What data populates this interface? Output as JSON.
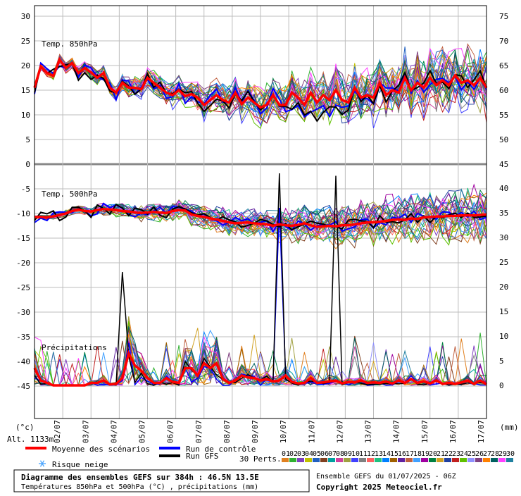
{
  "chart_data": {
    "type": "line",
    "x_ticks": [
      "02/07",
      "03/07",
      "04/07",
      "05/07",
      "06/07",
      "07/07",
      "08/07",
      "09/07",
      "10/07",
      "11/07",
      "12/07",
      "13/07",
      "14/07",
      "15/07",
      "16/07",
      "17/07"
    ],
    "left_axis": {
      "ticks": [
        30,
        25,
        20,
        15,
        10,
        5,
        0,
        -5,
        -10,
        -15,
        -20,
        -25,
        -30,
        -35,
        -40,
        -45
      ],
      "unit": "(°c)"
    },
    "right_axis_upper": {
      "ticks": [
        75,
        70,
        65,
        60,
        55,
        50,
        45
      ]
    },
    "right_axis_lower": {
      "ticks": [
        40,
        35,
        30,
        25,
        20,
        15,
        10,
        5,
        0
      ]
    },
    "right_unit": "(mm)",
    "panels": {
      "t850": "Temp. 850hPa",
      "t500": "Temp. 500hPa",
      "precip": "Précipitations"
    },
    "altitude": "Alt. 1133m",
    "t850_mean": [
      15.5,
      19.8,
      18.5,
      17.9,
      21.2,
      19.5,
      20.5,
      18.5,
      19.5,
      18.6,
      17.5,
      18.5,
      15.5,
      14.5,
      16.5,
      15.5,
      15.5,
      15.2,
      17.5,
      16.5,
      15.5,
      14.5,
      14,
      15,
      13.8,
      14.2,
      13.5,
      12,
      13,
      14,
      13,
      12.5,
      14.5,
      12.2,
      13.5,
      12.5,
      11.5,
      12,
      14,
      12,
      12,
      14.5,
      13.5,
      12,
      14.5,
      12.5,
      14,
      13,
      15,
      13,
      12.5,
      15.5,
      13.5,
      14,
      13.5,
      16.5,
      14,
      15,
      14.5,
      17.5,
      15,
      16.5,
      15.5,
      17.5,
      16,
      17,
      16,
      18,
      16.5,
      17,
      16,
      17.5,
      15.5
    ],
    "t500_mean": [
      -10.7,
      -10.7,
      -10.8,
      -10.6,
      -10.3,
      -10,
      -9.5,
      -9.2,
      -9.5,
      -9.6,
      -9.3,
      -9.1,
      -9.2,
      -9.3,
      -9.5,
      -9.6,
      -9.8,
      -9.9,
      -9.8,
      -9.7,
      -9.8,
      -9.9,
      -9.5,
      -9.3,
      -9.4,
      -10.2,
      -10.5,
      -10.7,
      -11,
      -11.2,
      -11.5,
      -11.8,
      -12,
      -11.9,
      -11.8,
      -12,
      -12.1,
      -12.2,
      -12.5,
      -12.2,
      -12.4,
      -12.5,
      -12.3,
      -12,
      -12.4,
      -12.7,
      -12.6,
      -12.5,
      -12.6,
      -12.4,
      -12.4,
      -12.2,
      -12,
      -11.8,
      -11.8,
      -11.7,
      -11.5,
      -11.3,
      -11.2,
      -11.3,
      -11,
      -11.1,
      -10.8,
      -10.7,
      -10.6,
      -10.6,
      -10.5,
      -10.5,
      -10.4,
      -10.4,
      -10.4,
      -10.3,
      -10.2
    ],
    "precip_mean": [
      3.5,
      1,
      0.5,
      0,
      0,
      0,
      0,
      0,
      0,
      0.5,
      0.5,
      1,
      0.2,
      0.3,
      1.5,
      6.5,
      4,
      3,
      1.5,
      0.5,
      0.5,
      1.5,
      0.7,
      0.5,
      3.5,
      3.5,
      2,
      4.5,
      3.5,
      4.5,
      1.3,
      0.5,
      1,
      2,
      1.6,
      1.5,
      1,
      1.3,
      0.8,
      1,
      2,
      0.7,
      0.4,
      0.5,
      1.5,
      0.5,
      0.6,
      0.8,
      1,
      0.4,
      0.7,
      0.6,
      1,
      0.5,
      0.6,
      0.5,
      0.8,
      0.4,
      1,
      0.5,
      1.3,
      0.5,
      0.8,
      0.4,
      1,
      0.3,
      0.5,
      0.3,
      0.6,
      1,
      0.3,
      1,
      0.2
    ],
    "control_peaks": [
      {
        "step": 39,
        "value": 36
      }
    ],
    "gfs_peaks": [
      {
        "step": 39,
        "value": 43
      },
      {
        "step": 48,
        "value": 42.5
      },
      {
        "step": 14,
        "value": 23
      }
    ],
    "legend": {
      "mean": {
        "label": "Moyenne des scénarios",
        "color": "#ff0000"
      },
      "control": {
        "label": "Run de contrôle",
        "color": "#0000ff"
      },
      "gfs": {
        "label": "Run GFS",
        "color": "#000000"
      },
      "snow": {
        "label": "Risque neige",
        "color": "#4da6ff"
      },
      "perts_label": "30 Perts.",
      "perts": [
        "01",
        "02",
        "03",
        "04",
        "05",
        "06",
        "07",
        "08",
        "09",
        "10",
        "11",
        "12",
        "13",
        "14",
        "15",
        "16",
        "17",
        "18",
        "19",
        "20",
        "21",
        "22",
        "23",
        "24",
        "25",
        "26",
        "27",
        "28",
        "29",
        "30"
      ],
      "pert_colors": [
        "#e08020",
        "#30b030",
        "#8040c0",
        "#c0c000",
        "#2060c0",
        "#804020",
        "#00a0a0",
        "#d040a0",
        "#a0a040",
        "#4040ff",
        "#808080",
        "#ff6060",
        "#20c080",
        "#0080ff",
        "#a06000",
        "#6020a0",
        "#c06040",
        "#40a0ff",
        "#a000a0",
        "#008040",
        "#d0a020",
        "#2040a0",
        "#c02020",
        "#60c000",
        "#9090ff",
        "#804080",
        "#ff8000",
        "#006060",
        "#ff40ff",
        "#2080a0"
      ]
    },
    "footer": {
      "title": "Diagramme des ensembles GEFS sur 384h : 46.5N 13.5E",
      "subtitle": "Températures 850hPa et 500hPa (°C) , précipitations (mm)",
      "run": "Ensemble GEFS du 01/07/2025 - 06Z",
      "copyright": "Copyright 2025 Meteociel.fr"
    }
  }
}
